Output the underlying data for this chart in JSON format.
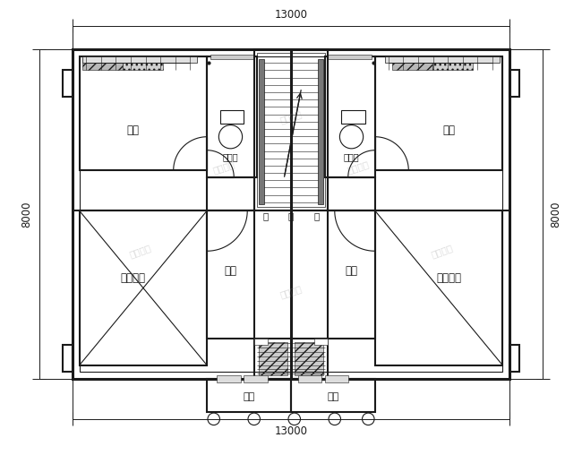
{
  "bg": "#ffffff",
  "lc": "#1a1a1a",
  "watermark": "图纸之家",
  "dim_h": "13000",
  "dim_v": "8000",
  "labels": {
    "bed_tl": "卧室",
    "bath_tl": "卫生间",
    "bed_tr": "卧室",
    "bath_tr": "卫生间",
    "living_l": "客厅上空",
    "bed_ml": "卧室",
    "bed_mr": "卧室",
    "living_r": "客厅上空",
    "bal_l": "阳台",
    "bal_r": "阳台",
    "up": "上",
    "down_l": "下",
    "down_r": "下"
  },
  "figsize": [
    6.5,
    5.08
  ],
  "dpi": 100
}
